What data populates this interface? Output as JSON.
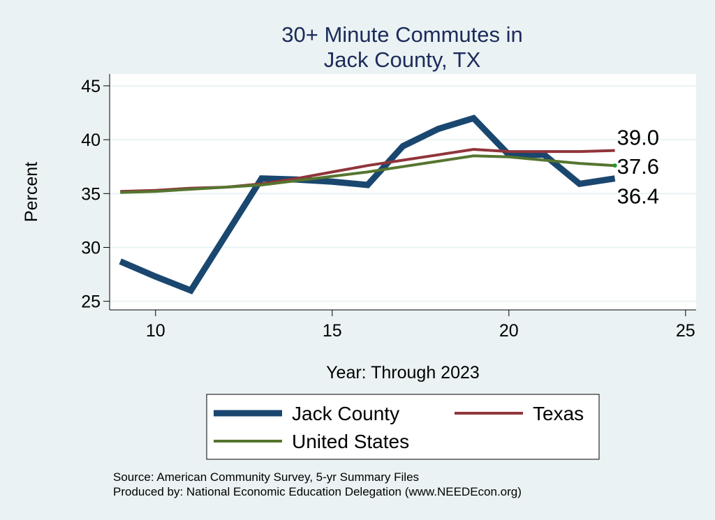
{
  "chart_data": {
    "type": "line",
    "title_lines": [
      "30+ Minute Commutes in",
      "Jack County, TX"
    ],
    "xlabel": "Year: Through 2023",
    "ylabel": "Percent",
    "xlim": [
      8.7,
      25.3
    ],
    "ylim": [
      24.2,
      46.1
    ],
    "xticks": [
      10,
      15,
      20,
      25
    ],
    "yticks": [
      25,
      30,
      35,
      40,
      45
    ],
    "grid": true,
    "legend_position": "bottom",
    "series": [
      {
        "name": "Jack County",
        "color": "#1a476f",
        "x": [
          9,
          10,
          11,
          12,
          13,
          14,
          15,
          16,
          17,
          18,
          19,
          20,
          21,
          22,
          23
        ],
        "values": [
          28.7,
          27.3,
          26.0,
          31.2,
          36.4,
          36.3,
          36.1,
          35.8,
          39.4,
          41.0,
          42.0,
          38.6,
          38.6,
          35.9,
          36.4
        ]
      },
      {
        "name": "Texas",
        "color": "#90353b",
        "x": [
          9,
          10,
          11,
          12,
          13,
          14,
          15,
          16,
          17,
          18,
          19,
          20,
          21,
          22,
          23
        ],
        "values": [
          35.2,
          35.3,
          35.5,
          35.6,
          35.9,
          36.4,
          37.0,
          37.6,
          38.1,
          38.6,
          39.1,
          38.9,
          38.9,
          38.9,
          39.0
        ]
      },
      {
        "name": "United States",
        "color": "#55752f",
        "x": [
          9,
          10,
          11,
          12,
          13,
          14,
          15,
          16,
          17,
          18,
          19,
          20,
          21,
          22,
          23
        ],
        "values": [
          35.1,
          35.2,
          35.4,
          35.6,
          35.8,
          36.2,
          36.6,
          37.0,
          37.5,
          38.0,
          38.5,
          38.4,
          38.1,
          37.8,
          37.6
        ]
      }
    ],
    "end_labels": [
      {
        "series": "Texas",
        "text": "39.0"
      },
      {
        "series": "United States",
        "text": "37.6"
      },
      {
        "series": "Jack County",
        "text": "36.4"
      }
    ]
  },
  "source_note": "Source: American Community Survey, 5-yr Summary Files",
  "producer_note": "Produced by: National Economic Education Delegation (www.NEEDEcon.org)"
}
